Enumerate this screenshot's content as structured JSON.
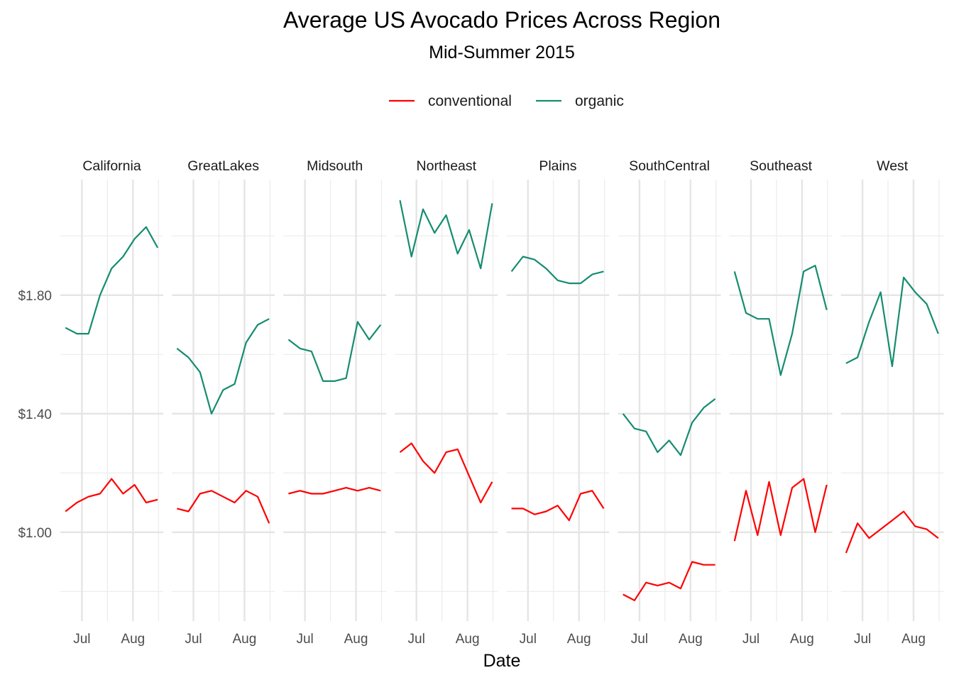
{
  "chart_data": {
    "type": "line",
    "title": "Average US Avocado Prices Across Region",
    "subtitle": "Mid-Summer 2015",
    "xlabel": "Date",
    "ylabel": "",
    "x": [
      "2015-06-21",
      "2015-06-28",
      "2015-07-05",
      "2015-07-12",
      "2015-07-19",
      "2015-07-26",
      "2015-08-02",
      "2015-08-09",
      "2015-08-16"
    ],
    "x_ticks": [
      {
        "date": "2015-07-01",
        "label": "Jul"
      },
      {
        "date": "2015-08-01",
        "label": "Aug"
      }
    ],
    "y_ticks": [
      {
        "value": 1.0,
        "label": "$1.00"
      },
      {
        "value": 1.4,
        "label": "$1.40"
      },
      {
        "value": 1.8,
        "label": "$1.80"
      }
    ],
    "ylim": [
      0.7,
      2.19
    ],
    "grid": true,
    "legend": {
      "placement": "top",
      "entries": [
        {
          "name": "conventional",
          "color": "#FF0000"
        },
        {
          "name": "organic",
          "color": "#168C70"
        }
      ]
    },
    "facets": [
      {
        "region": "California",
        "series": [
          {
            "name": "conventional",
            "values": [
              1.07,
              1.1,
              1.12,
              1.13,
              1.18,
              1.13,
              1.16,
              1.1,
              1.11
            ]
          },
          {
            "name": "organic",
            "values": [
              1.69,
              1.67,
              1.67,
              1.8,
              1.89,
              1.93,
              1.99,
              2.03,
              1.96
            ]
          }
        ]
      },
      {
        "region": "GreatLakes",
        "series": [
          {
            "name": "conventional",
            "values": [
              1.08,
              1.07,
              1.13,
              1.14,
              1.12,
              1.1,
              1.14,
              1.12,
              1.03
            ]
          },
          {
            "name": "organic",
            "values": [
              1.62,
              1.59,
              1.54,
              1.4,
              1.48,
              1.5,
              1.64,
              1.7,
              1.72
            ]
          }
        ]
      },
      {
        "region": "Midsouth",
        "series": [
          {
            "name": "conventional",
            "values": [
              1.13,
              1.14,
              1.13,
              1.13,
              1.14,
              1.15,
              1.14,
              1.15,
              1.14
            ]
          },
          {
            "name": "organic",
            "values": [
              1.65,
              1.62,
              1.61,
              1.51,
              1.51,
              1.52,
              1.71,
              1.65,
              1.7
            ]
          }
        ]
      },
      {
        "region": "Northeast",
        "series": [
          {
            "name": "conventional",
            "values": [
              1.27,
              1.3,
              1.24,
              1.2,
              1.27,
              1.28,
              1.19,
              1.1,
              1.17
            ]
          },
          {
            "name": "organic",
            "values": [
              2.12,
              1.93,
              2.09,
              2.01,
              2.07,
              1.94,
              2.02,
              1.89,
              2.11
            ]
          }
        ]
      },
      {
        "region": "Plains",
        "series": [
          {
            "name": "conventional",
            "values": [
              1.08,
              1.08,
              1.06,
              1.07,
              1.09,
              1.04,
              1.13,
              1.14,
              1.08
            ]
          },
          {
            "name": "organic",
            "values": [
              1.88,
              1.93,
              1.92,
              1.89,
              1.85,
              1.84,
              1.84,
              1.87,
              1.88
            ]
          }
        ]
      },
      {
        "region": "SouthCentral",
        "series": [
          {
            "name": "conventional",
            "values": [
              0.79,
              0.77,
              0.83,
              0.82,
              0.83,
              0.81,
              0.9,
              0.89,
              0.89
            ]
          },
          {
            "name": "organic",
            "values": [
              1.4,
              1.35,
              1.34,
              1.27,
              1.31,
              1.26,
              1.37,
              1.42,
              1.45
            ]
          }
        ]
      },
      {
        "region": "Southeast",
        "series": [
          {
            "name": "conventional",
            "values": [
              0.97,
              1.14,
              0.99,
              1.17,
              0.99,
              1.15,
              1.18,
              1.0,
              1.16
            ]
          },
          {
            "name": "organic",
            "values": [
              1.88,
              1.74,
              1.72,
              1.72,
              1.53,
              1.67,
              1.88,
              1.9,
              1.75
            ]
          }
        ]
      },
      {
        "region": "West",
        "series": [
          {
            "name": "conventional",
            "values": [
              0.93,
              1.03,
              0.98,
              1.01,
              1.04,
              1.07,
              1.02,
              1.01,
              0.98
            ]
          },
          {
            "name": "organic",
            "values": [
              1.57,
              1.59,
              1.71,
              1.81,
              1.56,
              1.86,
              1.81,
              1.77,
              1.67
            ]
          }
        ]
      }
    ]
  }
}
